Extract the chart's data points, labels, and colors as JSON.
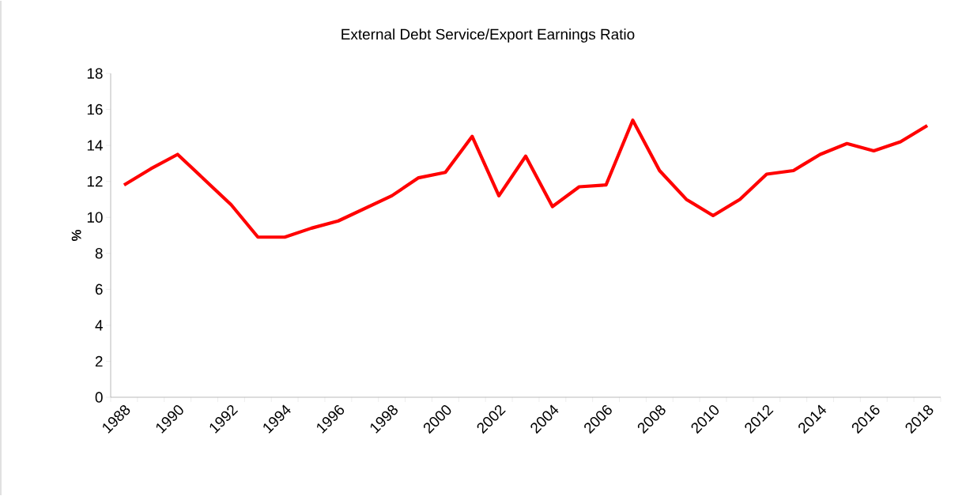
{
  "chart_data": {
    "type": "line",
    "title": "External Debt Service/Export Earnings Ratio",
    "ylabel": "%",
    "categories": [
      "1988",
      null,
      "1990",
      null,
      "1992",
      null,
      "1994",
      null,
      "1996",
      null,
      "1998",
      null,
      "2000",
      null,
      "2002",
      null,
      "2004",
      null,
      "2006",
      null,
      "2008",
      null,
      "2010",
      null,
      "2012",
      null,
      "2014",
      null,
      "2016",
      null,
      "2018"
    ],
    "series": [
      {
        "color": "#ff0000",
        "values": [
          11.8,
          12.7,
          13.5,
          12.1,
          10.7,
          8.9,
          8.9,
          9.4,
          9.8,
          10.5,
          11.2,
          12.2,
          12.5,
          14.5,
          11.2,
          13.4,
          10.6,
          11.7,
          11.8,
          15.4,
          12.6,
          11.0,
          10.1,
          11.0,
          12.4,
          12.6,
          13.5,
          14.1,
          13.7,
          14.2,
          15.1
        ]
      }
    ],
    "ylim": [
      0,
      18
    ],
    "yticks": [
      0,
      2,
      4,
      6,
      8,
      10,
      12,
      14,
      16,
      18
    ],
    "grid": false,
    "legend": false,
    "marker": "none",
    "line_style": "solid"
  }
}
